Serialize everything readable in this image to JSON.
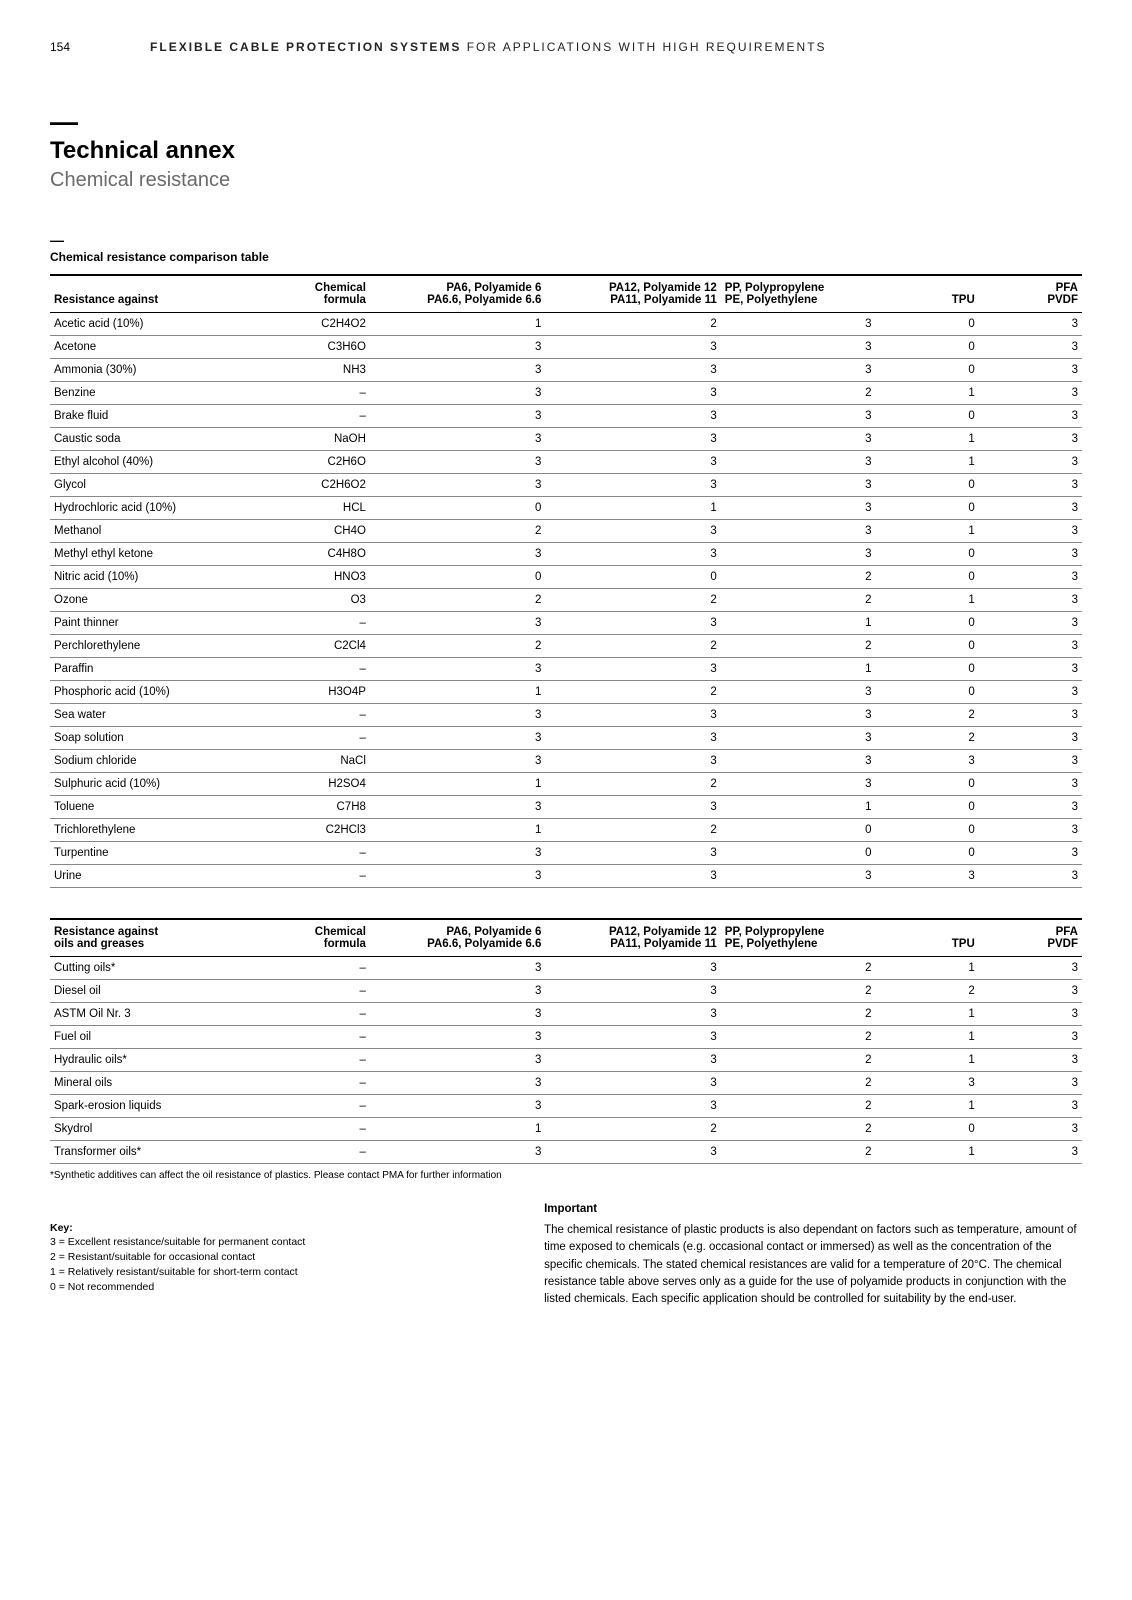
{
  "page": {
    "number": "154",
    "header": "FLEXIBLE CABLE PROTECTION SYSTEMS",
    "header_suffix": " FOR APPLICATIONS WITH HIGH REQUIREMENTS"
  },
  "title_block": {
    "dash": "—",
    "title": "Technical annex",
    "subtitle": "Chemical resistance"
  },
  "caption_block": {
    "dash": "—",
    "caption": "Chemical resistance comparison table"
  },
  "table1": {
    "head": {
      "c0": "Resistance against",
      "c1a": "Chemical",
      "c1b": "formula",
      "c2a": "PA6, Polyamide 6",
      "c2b": "PA6.6, Polyamide 6.6",
      "c3a": "PA12, Polyamide 12",
      "c3b": "PA11, Polyamide 11",
      "c4a": "PP, Polypropylene",
      "c4b": "PE, Polyethylene",
      "c5": "TPU",
      "c6a": "PFA",
      "c6b": "PVDF"
    },
    "rows": [
      {
        "c0": "Acetic acid (10%)",
        "c1": "C2H4O2",
        "c2": "1",
        "c3": "2",
        "c4": "3",
        "c5": "0",
        "c6": "3"
      },
      {
        "c0": "Acetone",
        "c1": "C3H6O",
        "c2": "3",
        "c3": "3",
        "c4": "3",
        "c5": "0",
        "c6": "3"
      },
      {
        "c0": "Ammonia (30%)",
        "c1": "NH3",
        "c2": "3",
        "c3": "3",
        "c4": "3",
        "c5": "0",
        "c6": "3"
      },
      {
        "c0": "Benzine",
        "c1": "–",
        "c2": "3",
        "c3": "3",
        "c4": "2",
        "c5": "1",
        "c6": "3"
      },
      {
        "c0": "Brake fluid",
        "c1": "–",
        "c2": "3",
        "c3": "3",
        "c4": "3",
        "c5": "0",
        "c6": "3"
      },
      {
        "c0": "Caustic soda",
        "c1": "NaOH",
        "c2": "3",
        "c3": "3",
        "c4": "3",
        "c5": "1",
        "c6": "3"
      },
      {
        "c0": "Ethyl alcohol (40%)",
        "c1": "C2H6O",
        "c2": "3",
        "c3": "3",
        "c4": "3",
        "c5": "1",
        "c6": "3"
      },
      {
        "c0": "Glycol",
        "c1": "C2H6O2",
        "c2": "3",
        "c3": "3",
        "c4": "3",
        "c5": "0",
        "c6": "3"
      },
      {
        "c0": "Hydrochloric acid (10%)",
        "c1": "HCL",
        "c2": "0",
        "c3": "1",
        "c4": "3",
        "c5": "0",
        "c6": "3"
      },
      {
        "c0": "Methanol",
        "c1": "CH4O",
        "c2": "2",
        "c3": "3",
        "c4": "3",
        "c5": "1",
        "c6": "3"
      },
      {
        "c0": "Methyl ethyl ketone",
        "c1": "C4H8O",
        "c2": "3",
        "c3": "3",
        "c4": "3",
        "c5": "0",
        "c6": "3"
      },
      {
        "c0": "Nitric acid (10%)",
        "c1": "HNO3",
        "c2": "0",
        "c3": "0",
        "c4": "2",
        "c5": "0",
        "c6": "3"
      },
      {
        "c0": "Ozone",
        "c1": "O3",
        "c2": "2",
        "c3": "2",
        "c4": "2",
        "c5": "1",
        "c6": "3"
      },
      {
        "c0": "Paint thinner",
        "c1": "–",
        "c2": "3",
        "c3": "3",
        "c4": "1",
        "c5": "0",
        "c6": "3"
      },
      {
        "c0": "Perchlorethylene",
        "c1": "C2Cl4",
        "c2": "2",
        "c3": "2",
        "c4": "2",
        "c5": "0",
        "c6": "3"
      },
      {
        "c0": "Paraffin",
        "c1": "–",
        "c2": "3",
        "c3": "3",
        "c4": "1",
        "c5": "0",
        "c6": "3"
      },
      {
        "c0": "Phosphoric acid (10%)",
        "c1": "H3O4P",
        "c2": "1",
        "c3": "2",
        "c4": "3",
        "c5": "0",
        "c6": "3"
      },
      {
        "c0": "Sea water",
        "c1": "–",
        "c2": "3",
        "c3": "3",
        "c4": "3",
        "c5": "2",
        "c6": "3"
      },
      {
        "c0": "Soap solution",
        "c1": "–",
        "c2": "3",
        "c3": "3",
        "c4": "3",
        "c5": "2",
        "c6": "3"
      },
      {
        "c0": "Sodium chloride",
        "c1": "NaCl",
        "c2": "3",
        "c3": "3",
        "c4": "3",
        "c5": "3",
        "c6": "3"
      },
      {
        "c0": "Sulphuric acid (10%)",
        "c1": "H2SO4",
        "c2": "1",
        "c3": "2",
        "c4": "3",
        "c5": "0",
        "c6": "3"
      },
      {
        "c0": "Toluene",
        "c1": "C7H8",
        "c2": "3",
        "c3": "3",
        "c4": "1",
        "c5": "0",
        "c6": "3"
      },
      {
        "c0": "Trichlorethylene",
        "c1": "C2HCl3",
        "c2": "1",
        "c3": "2",
        "c4": "0",
        "c5": "0",
        "c6": "3"
      },
      {
        "c0": "Turpentine",
        "c1": "–",
        "c2": "3",
        "c3": "3",
        "c4": "0",
        "c5": "0",
        "c6": "3"
      },
      {
        "c0": "Urine",
        "c1": "–",
        "c2": "3",
        "c3": "3",
        "c4": "3",
        "c5": "3",
        "c6": "3"
      }
    ]
  },
  "table2": {
    "head": {
      "c0a": "Resistance against",
      "c0b": "oils and greases",
      "c1a": "Chemical",
      "c1b": "formula",
      "c2a": "PA6, Polyamide 6",
      "c2b": "PA6.6, Polyamide 6.6",
      "c3a": "PA12, Polyamide 12",
      "c3b": "PA11, Polyamide 11",
      "c4a": "PP, Polypropylene",
      "c4b": "PE, Polyethylene",
      "c5": "TPU",
      "c6a": "PFA",
      "c6b": "PVDF"
    },
    "rows": [
      {
        "c0": "Cutting oils*",
        "c1": "–",
        "c2": "3",
        "c3": "3",
        "c4": "2",
        "c5": "1",
        "c6": "3"
      },
      {
        "c0": "Diesel oil",
        "c1": "–",
        "c2": "3",
        "c3": "3",
        "c4": "2",
        "c5": "2",
        "c6": "3"
      },
      {
        "c0": "ASTM Oil Nr. 3",
        "c1": "–",
        "c2": "3",
        "c3": "3",
        "c4": "2",
        "c5": "1",
        "c6": "3"
      },
      {
        "c0": "Fuel oil",
        "c1": "–",
        "c2": "3",
        "c3": "3",
        "c4": "2",
        "c5": "1",
        "c6": "3"
      },
      {
        "c0": "Hydraulic oils*",
        "c1": "–",
        "c2": "3",
        "c3": "3",
        "c4": "2",
        "c5": "1",
        "c6": "3"
      },
      {
        "c0": "Mineral oils",
        "c1": "–",
        "c2": "3",
        "c3": "3",
        "c4": "2",
        "c5": "3",
        "c6": "3"
      },
      {
        "c0": "Spark-erosion liquids",
        "c1": "–",
        "c2": "3",
        "c3": "3",
        "c4": "2",
        "c5": "1",
        "c6": "3"
      },
      {
        "c0": "Skydrol",
        "c1": "–",
        "c2": "1",
        "c3": "2",
        "c4": "2",
        "c5": "0",
        "c6": "3"
      },
      {
        "c0": "Transformer oils*",
        "c1": "–",
        "c2": "3",
        "c3": "3",
        "c4": "2",
        "c5": "1",
        "c6": "3"
      }
    ]
  },
  "footnote": "*Synthetic additives can affect the oil resistance of plastics. Please contact PMA for further information",
  "key": {
    "title": "Key:",
    "l1": "3 = Excellent resistance/suitable for permanent contact",
    "l2": "2 = Resistant/suitable for occasional contact",
    "l3": "1 = Relatively resistant/suitable for short-term contact",
    "l4": "0 = Not recommended"
  },
  "important": {
    "title": "Important",
    "body": "The chemical resistance of plastic products is also dependant on factors such as temperature, amount of time exposed to chemicals (e.g. occasional contact or immersed) as well as the concentration of the specific chemicals. The stated chemical resistances are valid for a temperature of 20°C. The chemical resistance table above serves only as a guide for the use of polyamide products in conjunction with the listed chemicals. Each specific application should be controlled for suitability by the end-user."
  },
  "colwidths": {
    "c0": "21%",
    "c1": "10%",
    "c2": "17%",
    "c3": "17%",
    "c4": "15%",
    "c5": "10%",
    "c6": "10%"
  }
}
